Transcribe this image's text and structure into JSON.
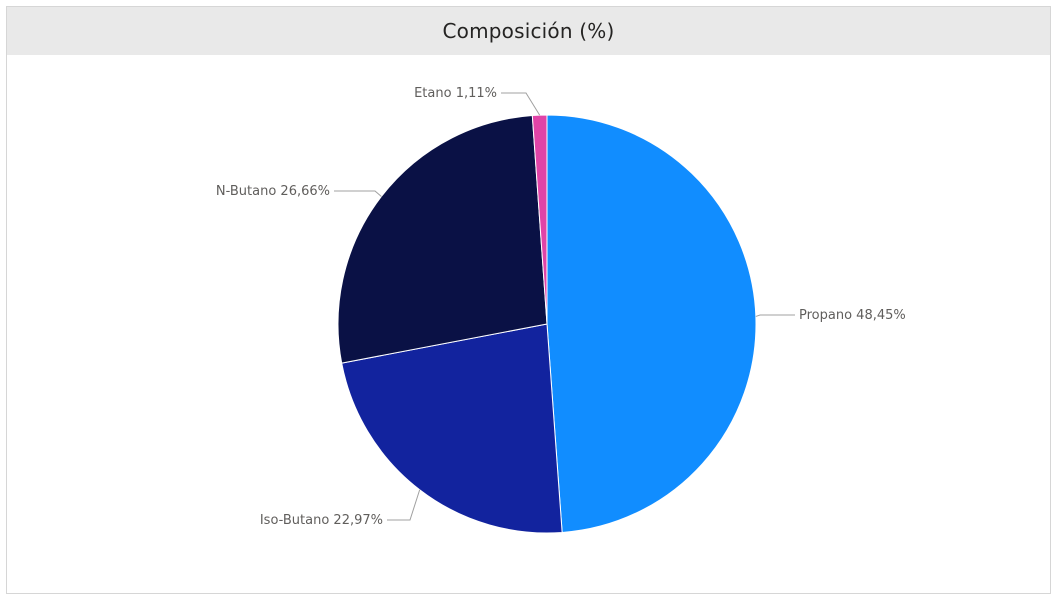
{
  "chart_data": {
    "type": "pie",
    "title": "Composición (%)",
    "slices": [
      {
        "label": "Propano 48,45%",
        "value": 48.45,
        "color": "#118dff"
      },
      {
        "label": "Iso-Butano 22,97%",
        "value": 22.97,
        "color": "#12239e"
      },
      {
        "label": "N-Butano 26,66%",
        "value": 26.66,
        "color": "#0a1145"
      },
      {
        "label": "Etano 1,11%",
        "value": 1.11,
        "color": "#e044a7"
      }
    ]
  }
}
